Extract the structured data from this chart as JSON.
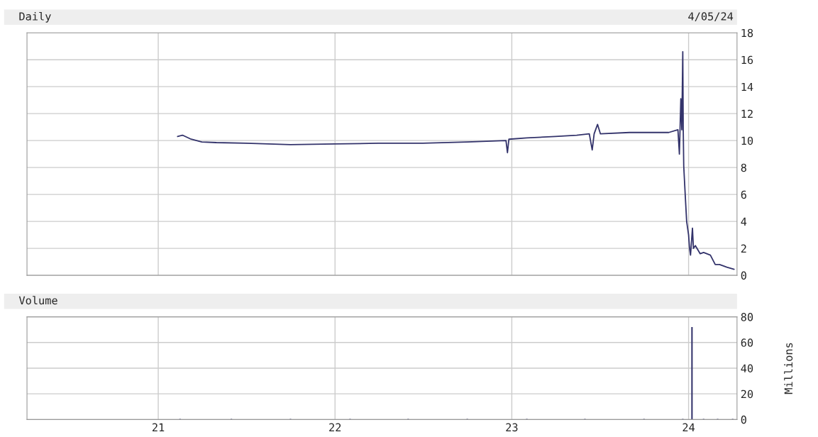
{
  "chart_data": [
    {
      "type": "line",
      "title": "Daily",
      "subtitle": "4/05/24",
      "color": "#33336b",
      "x": [
        "2021-02-10",
        "2021-02-20",
        "2021-03-10",
        "2021-04-01",
        "2021-05-01",
        "2021-07-01",
        "2021-10-01",
        "2022-01-01",
        "2022-04-01",
        "2022-07-01",
        "2022-10-01",
        "2022-12-20",
        "2022-12-23",
        "2022-12-26",
        "2023-02-01",
        "2023-04-01",
        "2023-05-15",
        "2023-06-10",
        "2023-06-16",
        "2023-06-20",
        "2023-06-27",
        "2023-07-03",
        "2023-09-01",
        "2023-11-21",
        "2023-12-10",
        "2023-12-13",
        "2023-12-16",
        "2023-12-18",
        "2023-12-20",
        "2023-12-21",
        "2023-12-22",
        "2023-12-25",
        "2023-12-28",
        "2024-01-01",
        "2024-01-03",
        "2024-01-05",
        "2024-01-09",
        "2024-01-11",
        "2024-01-15",
        "2024-01-25",
        "2024-02-01",
        "2024-02-15",
        "2024-02-25",
        "2024-03-05",
        "2024-03-20",
        "2024-04-04"
      ],
      "values": [
        10.3,
        10.4,
        10.1,
        9.9,
        9.85,
        9.8,
        9.7,
        9.75,
        9.8,
        9.8,
        9.9,
        10.0,
        9.1,
        10.1,
        10.2,
        10.3,
        10.4,
        10.5,
        9.3,
        10.5,
        11.2,
        10.5,
        10.6,
        10.6,
        10.8,
        9.0,
        13.1,
        10.8,
        16.6,
        10.8,
        8.1,
        6.0,
        4.0,
        3.0,
        2.0,
        1.5,
        3.5,
        2.0,
        2.2,
        1.6,
        1.7,
        1.5,
        0.8,
        0.8,
        0.6,
        0.45
      ],
      "xlim": [
        "2020-04-05",
        "2024-04-10"
      ],
      "xticks": [
        {
          "value": "2021-01-01",
          "label": null
        },
        {
          "value": "2022-01-01",
          "label": null
        },
        {
          "value": "2023-01-01",
          "label": null
        },
        {
          "value": "2024-01-01",
          "label": null
        }
      ],
      "ylim": [
        0,
        18
      ],
      "yticks": [
        0,
        2,
        4,
        6,
        8,
        10,
        12,
        14,
        16,
        18
      ],
      "grid": true,
      "tick_labels": "y"
    },
    {
      "type": "bar",
      "title": "Volume",
      "ylabel": "Millions",
      "color": "#33336b",
      "x": [
        "2021-02-15",
        "2021-06-01",
        "2021-10-01",
        "2022-02-01",
        "2022-06-01",
        "2022-10-01",
        "2023-02-01",
        "2023-06-01",
        "2023-10-01",
        "2023-12-20",
        "2024-01-08",
        "2024-02-01",
        "2024-03-01",
        "2024-04-01"
      ],
      "values": [
        0.5,
        0.5,
        0.5,
        0.5,
        0.5,
        0.5,
        0.5,
        0.5,
        0.5,
        0.5,
        72,
        0.5,
        0.5,
        0.5
      ],
      "xlim": [
        "2020-04-05",
        "2024-04-10"
      ],
      "xticks": [
        {
          "value": "2021-01-01",
          "label": "21"
        },
        {
          "value": "2022-01-01",
          "label": "22"
        },
        {
          "value": "2023-01-01",
          "label": "23"
        },
        {
          "value": "2024-01-01",
          "label": "24"
        }
      ],
      "ylim": [
        0,
        80
      ],
      "yticks": [
        0,
        20,
        40,
        60,
        80
      ],
      "grid": true
    }
  ]
}
